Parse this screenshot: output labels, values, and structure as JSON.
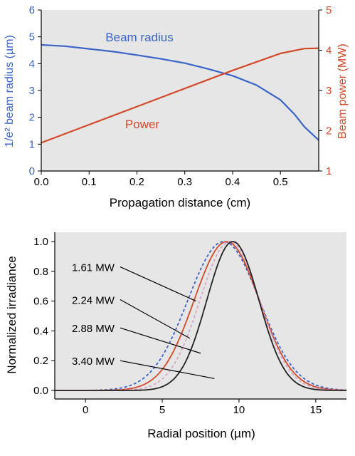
{
  "colors": {
    "panel_bg": "#e6e6e6",
    "axis": "#000000",
    "blue": "#3a64c6",
    "red": "#d24a2a",
    "pink": "#d7a7c7",
    "black": "#222222"
  },
  "chart_data": [
    {
      "type": "line",
      "xlabel": "Propagation distance (cm)",
      "ylabel": "1/e² beam radius (µm)",
      "y2label": "Beam power (MW)",
      "xlim": [
        0,
        0.58
      ],
      "ylim": [
        0,
        6
      ],
      "y2lim": [
        1,
        5
      ],
      "x_ticks": [
        0.0,
        0.1,
        0.2,
        0.3,
        0.4,
        0.5
      ],
      "x_tick_labels": [
        "0.0",
        "0.1",
        "0.2",
        "0.3",
        "0.4",
        "0.5"
      ],
      "y_ticks": [
        0,
        1,
        2,
        3,
        4,
        5,
        6
      ],
      "y_tick_labels": [
        "0",
        "1",
        "2",
        "3",
        "4",
        "5",
        "6"
      ],
      "y2_ticks": [
        1,
        2,
        3,
        4,
        5
      ],
      "y2_tick_labels": [
        "1",
        "2",
        "3",
        "4",
        "5"
      ],
      "grid": false,
      "series": [
        {
          "name": "Beam radius",
          "axis": "left",
          "color": "#3a64c6",
          "x": [
            0,
            0.05,
            0.1,
            0.15,
            0.2,
            0.25,
            0.3,
            0.35,
            0.4,
            0.45,
            0.5,
            0.53,
            0.55,
            0.58
          ],
          "y": [
            4.7,
            4.65,
            4.55,
            4.45,
            4.32,
            4.18,
            4.02,
            3.8,
            3.55,
            3.2,
            2.65,
            2.1,
            1.65,
            1.15
          ]
        },
        {
          "name": "Power",
          "axis": "right",
          "color": "#d24a2a",
          "x": [
            0,
            0.1,
            0.2,
            0.3,
            0.4,
            0.5,
            0.55,
            0.58
          ],
          "y": [
            1.7,
            2.15,
            2.6,
            3.05,
            3.5,
            3.92,
            4.04,
            4.05
          ]
        }
      ]
    },
    {
      "type": "line",
      "xlabel": "Radial position (µm)",
      "ylabel": "Normalized irradiance",
      "xlim": [
        -2,
        17
      ],
      "ylim": [
        0,
        1.05
      ],
      "x_ticks": [
        0,
        5,
        10,
        15
      ],
      "x_tick_labels": [
        "0",
        "5",
        "10",
        "15"
      ],
      "y_ticks": [
        0,
        0.2,
        0.4,
        0.6,
        0.8,
        1.0
      ],
      "y_tick_labels": [
        "0.0",
        "0.2",
        "0.4",
        "0.6",
        "0.8",
        "1.0"
      ],
      "grid": false,
      "series": [
        {
          "name": "1.61 MW",
          "center": 9.0,
          "width": 3.3,
          "color": "#3a64c6",
          "dash": "4 3"
        },
        {
          "name": "2.24 MW",
          "center": 9.2,
          "width": 3.0,
          "color": "#d24a2a",
          "dash": ""
        },
        {
          "name": "2.88 MW",
          "center": 9.4,
          "width": 2.75,
          "color": "#d7a7c7",
          "dash": "4 3"
        },
        {
          "name": "3.40 MW",
          "center": 9.6,
          "width": 2.4,
          "color": "#222222",
          "dash": ""
        }
      ],
      "annotations": [
        {
          "label": "1.61 MW",
          "x": 0.5,
          "y": 0.83,
          "arrow_to": [
            7.2,
            0.6
          ]
        },
        {
          "label": "2.24 MW",
          "x": 0.5,
          "y": 0.61,
          "arrow_to": [
            6.8,
            0.35
          ]
        },
        {
          "label": "2.88 MW",
          "x": 0.5,
          "y": 0.42,
          "arrow_to": [
            7.5,
            0.25
          ]
        },
        {
          "label": "3.40 MW",
          "x": 0.5,
          "y": 0.2,
          "arrow_to": [
            8.4,
            0.08
          ]
        }
      ]
    }
  ]
}
